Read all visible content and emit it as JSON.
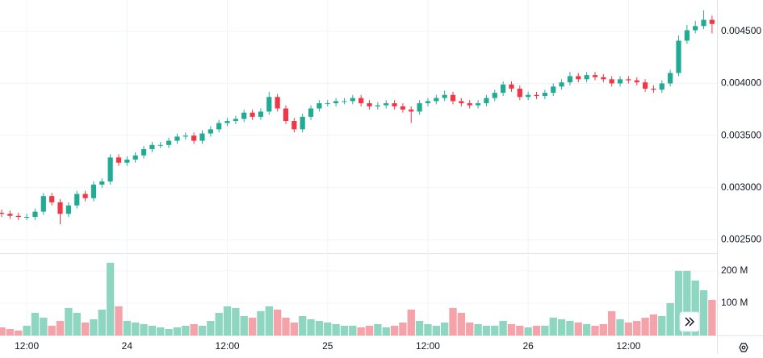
{
  "chart_data": {
    "type": "candlestick",
    "up_color": "#22ab94",
    "down_color": "#f23645",
    "volume_up_color": "#8fd6c1",
    "volume_down_color": "#f5a3ab",
    "grid": true,
    "xlim": [
      -0.2,
      85.3
    ],
    "xticks": [
      {
        "value": 3,
        "label": "12:00"
      },
      {
        "value": 15,
        "label": "24"
      },
      {
        "value": 27,
        "label": "12:00"
      },
      {
        "value": 39,
        "label": "25"
      },
      {
        "value": 51,
        "label": "12:00"
      },
      {
        "value": 63,
        "label": "26"
      },
      {
        "value": 75,
        "label": "12:00"
      }
    ],
    "ylim": [
      0.00238,
      0.0048
    ],
    "yticks": [
      {
        "value": 0.0025,
        "label": "0.002500"
      },
      {
        "value": 0.003,
        "label": "0.003000"
      },
      {
        "value": 0.0035,
        "label": "0.003500"
      },
      {
        "value": 0.004,
        "label": "0.004000"
      },
      {
        "value": 0.0045,
        "label": "0.004500"
      }
    ],
    "volume_ylim": [
      0,
      252
    ],
    "volume_yticks": [
      {
        "value": 100,
        "label": "100 M"
      },
      {
        "value": 200,
        "label": "200 M"
      }
    ],
    "open": [
      0.00276,
      0.00275,
      0.00273,
      0.00272,
      0.00272,
      0.00277,
      0.00292,
      0.00286,
      0.00275,
      0.00283,
      0.00294,
      0.0029,
      0.00303,
      0.00306,
      0.00329,
      0.00324,
      0.00327,
      0.00331,
      0.00337,
      0.00341,
      0.00341,
      0.00345,
      0.00349,
      0.0035,
      0.00345,
      0.00352,
      0.00356,
      0.00362,
      0.00364,
      0.00366,
      0.00372,
      0.00368,
      0.00373,
      0.00387,
      0.00376,
      0.00364,
      0.00356,
      0.00368,
      0.00376,
      0.00381,
      0.00381,
      0.00383,
      0.00383,
      0.00386,
      0.00381,
      0.00378,
      0.00379,
      0.00381,
      0.00378,
      0.00375,
      0.00373,
      0.00381,
      0.00383,
      0.00386,
      0.00389,
      0.00383,
      0.00381,
      0.00379,
      0.00381,
      0.00386,
      0.00391,
      0.00399,
      0.00395,
      0.00387,
      0.00389,
      0.00388,
      0.00391,
      0.00397,
      0.00401,
      0.00407,
      0.00404,
      0.00408,
      0.00406,
      0.00404,
      0.004,
      0.00404,
      0.00403,
      0.00401,
      0.00395,
      0.00394,
      0.004,
      0.0041,
      0.00441,
      0.00451,
      0.00455,
      0.00461
    ],
    "high": [
      0.00279,
      0.00278,
      0.00276,
      0.00275,
      0.0028,
      0.00295,
      0.00295,
      0.00289,
      0.00286,
      0.00297,
      0.00297,
      0.00306,
      0.00309,
      0.00332,
      0.00332,
      0.0033,
      0.00334,
      0.0034,
      0.00344,
      0.00344,
      0.00348,
      0.00352,
      0.00353,
      0.00353,
      0.00355,
      0.00359,
      0.00365,
      0.00367,
      0.00369,
      0.00375,
      0.00375,
      0.00376,
      0.00392,
      0.0039,
      0.00379,
      0.00367,
      0.00371,
      0.00379,
      0.00384,
      0.00384,
      0.00386,
      0.00386,
      0.00389,
      0.00389,
      0.00384,
      0.00382,
      0.00384,
      0.00384,
      0.00381,
      0.00378,
      0.00384,
      0.00386,
      0.00389,
      0.00393,
      0.00392,
      0.00386,
      0.00384,
      0.00384,
      0.00389,
      0.00394,
      0.00402,
      0.00402,
      0.00398,
      0.00392,
      0.00392,
      0.00394,
      0.004,
      0.00404,
      0.00411,
      0.0041,
      0.00411,
      0.00411,
      0.00409,
      0.00407,
      0.00407,
      0.00407,
      0.00406,
      0.00404,
      0.00398,
      0.00403,
      0.00413,
      0.00446,
      0.00456,
      0.0046,
      0.0047,
      0.00465
    ],
    "low": [
      0.00272,
      0.0027,
      0.00269,
      0.00269,
      0.00269,
      0.00274,
      0.00283,
      0.00265,
      0.00272,
      0.0028,
      0.00287,
      0.00287,
      0.003,
      0.00303,
      0.00321,
      0.00321,
      0.00324,
      0.00328,
      0.00334,
      0.00338,
      0.00338,
      0.00342,
      0.00346,
      0.00342,
      0.00342,
      0.00349,
      0.00353,
      0.00359,
      0.00361,
      0.00363,
      0.00365,
      0.00365,
      0.0037,
      0.00373,
      0.00361,
      0.00353,
      0.00353,
      0.00365,
      0.00373,
      0.00378,
      0.00378,
      0.0038,
      0.0038,
      0.00378,
      0.00375,
      0.00375,
      0.00376,
      0.00375,
      0.00372,
      0.00362,
      0.0037,
      0.00378,
      0.0038,
      0.00383,
      0.0038,
      0.00378,
      0.00376,
      0.00376,
      0.00378,
      0.00383,
      0.00388,
      0.00392,
      0.00384,
      0.00384,
      0.00385,
      0.00385,
      0.00388,
      0.00394,
      0.00398,
      0.00401,
      0.00401,
      0.00403,
      0.00401,
      0.00397,
      0.00397,
      0.004,
      0.00398,
      0.00392,
      0.00391,
      0.00391,
      0.00397,
      0.00407,
      0.00438,
      0.00448,
      0.00452,
      0.00448
    ],
    "close": [
      0.00275,
      0.00273,
      0.00272,
      0.00272,
      0.00277,
      0.00292,
      0.00286,
      0.00275,
      0.00283,
      0.00294,
      0.0029,
      0.00303,
      0.00306,
      0.00329,
      0.00324,
      0.00327,
      0.00331,
      0.00337,
      0.00341,
      0.00341,
      0.00345,
      0.00349,
      0.0035,
      0.00345,
      0.00352,
      0.00356,
      0.00362,
      0.00364,
      0.00366,
      0.00372,
      0.00368,
      0.00373,
      0.00387,
      0.00376,
      0.00364,
      0.00356,
      0.00368,
      0.00376,
      0.00381,
      0.00381,
      0.00383,
      0.00383,
      0.00386,
      0.00381,
      0.00378,
      0.00379,
      0.00381,
      0.00378,
      0.00375,
      0.00373,
      0.00381,
      0.00383,
      0.00386,
      0.00389,
      0.00383,
      0.00381,
      0.00379,
      0.00381,
      0.00386,
      0.00391,
      0.00399,
      0.00395,
      0.00387,
      0.00389,
      0.00388,
      0.00391,
      0.00397,
      0.00401,
      0.00407,
      0.00404,
      0.00408,
      0.00406,
      0.00404,
      0.004,
      0.00404,
      0.00403,
      0.00401,
      0.00395,
      0.00394,
      0.004,
      0.0041,
      0.00441,
      0.00451,
      0.00455,
      0.00461,
      0.00457
    ],
    "volume": [
      25,
      20,
      15,
      30,
      70,
      55,
      30,
      45,
      85,
      70,
      40,
      50,
      80,
      225,
      90,
      45,
      40,
      35,
      30,
      25,
      20,
      25,
      30,
      35,
      30,
      45,
      70,
      90,
      85,
      60,
      55,
      75,
      90,
      80,
      55,
      40,
      60,
      50,
      45,
      40,
      35,
      30,
      30,
      25,
      30,
      35,
      25,
      30,
      40,
      80,
      45,
      35,
      30,
      40,
      85,
      70,
      40,
      35,
      30,
      30,
      45,
      35,
      30,
      25,
      30,
      30,
      55,
      50,
      45,
      40,
      35,
      30,
      35,
      75,
      50,
      40,
      45,
      55,
      65,
      60,
      100,
      200,
      200,
      170,
      140,
      110
    ]
  }
}
